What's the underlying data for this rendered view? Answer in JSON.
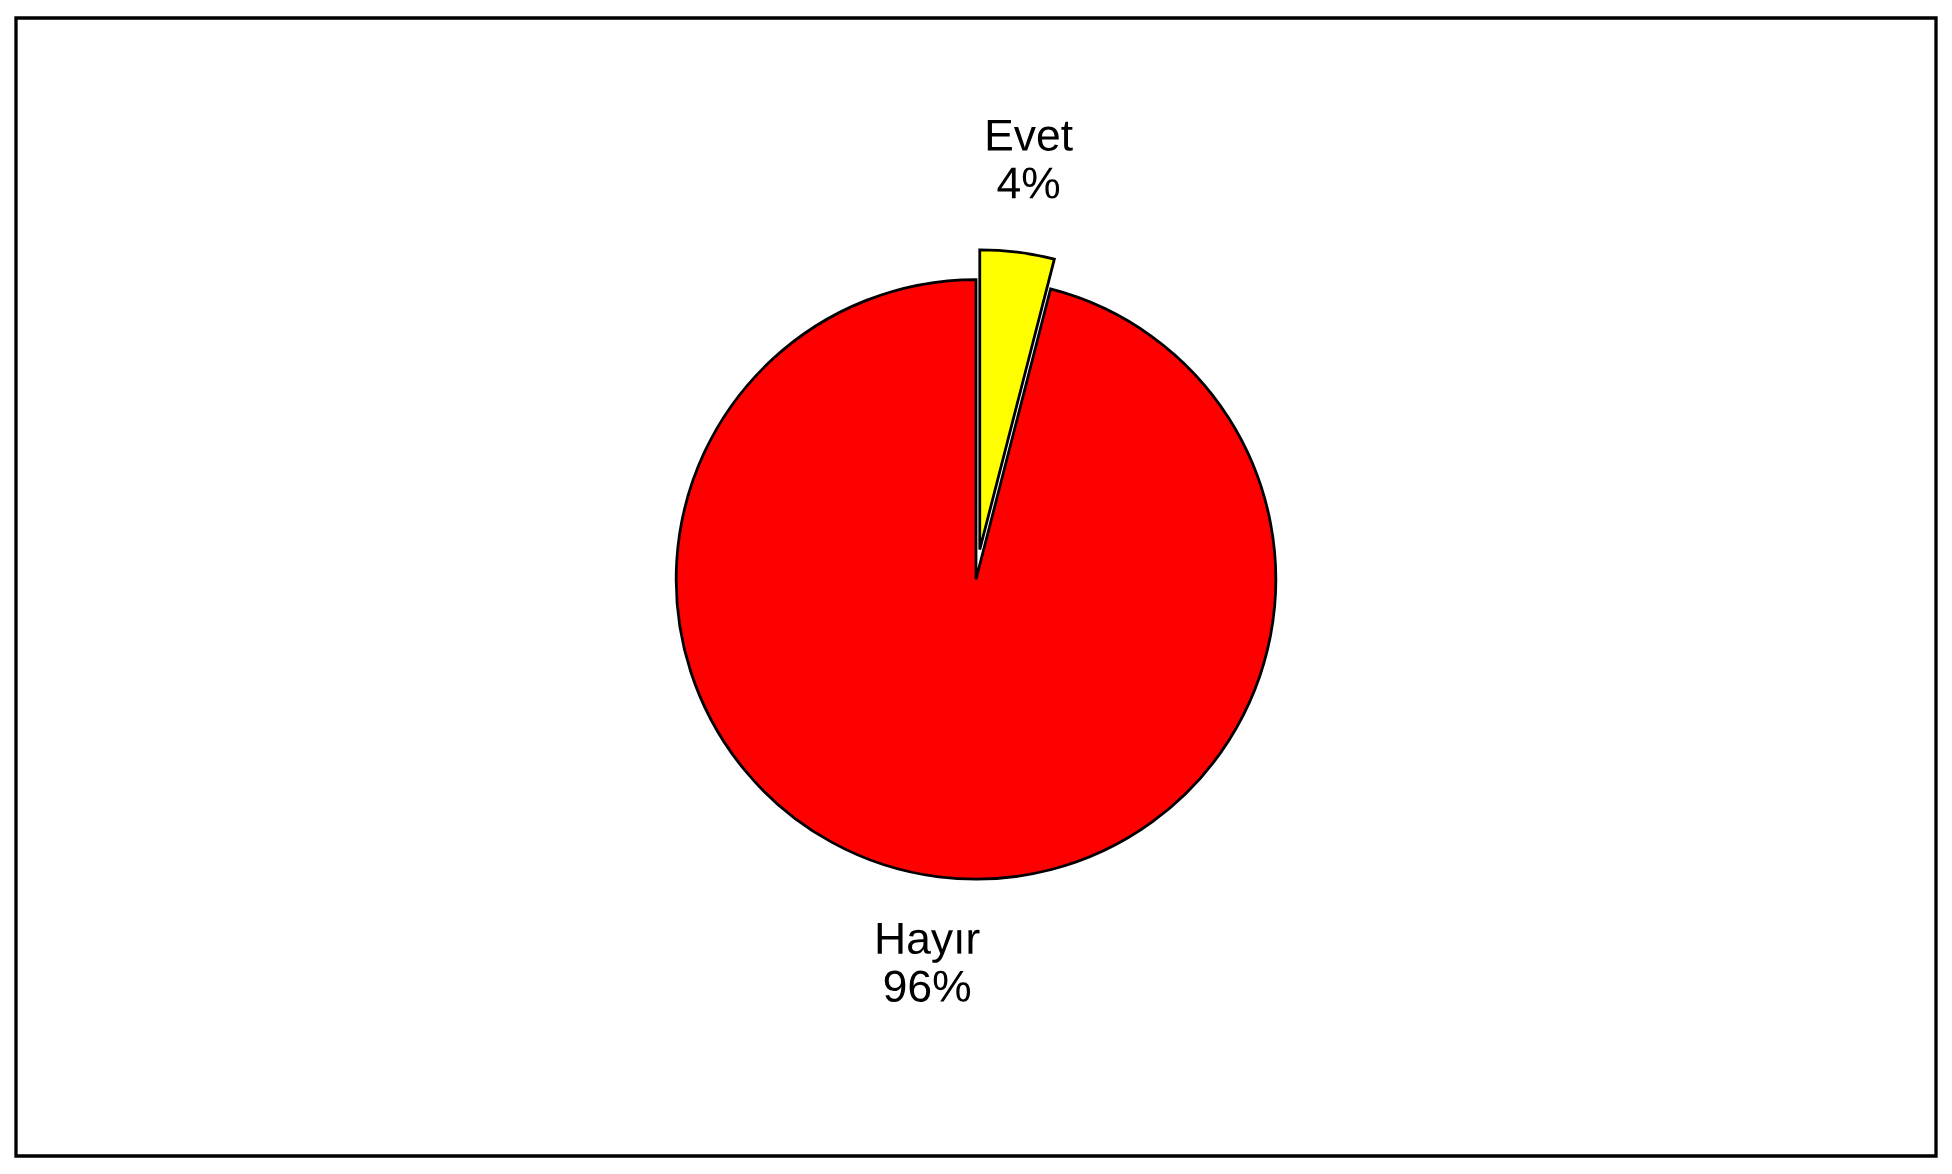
{
  "chart_data": {
    "type": "pie",
    "categories": [
      "Evet",
      "Hayır"
    ],
    "values": [
      4,
      96
    ],
    "colors": [
      "#ffff00",
      "#ff0000"
    ],
    "value_labels": [
      "4%",
      "96%"
    ]
  }
}
